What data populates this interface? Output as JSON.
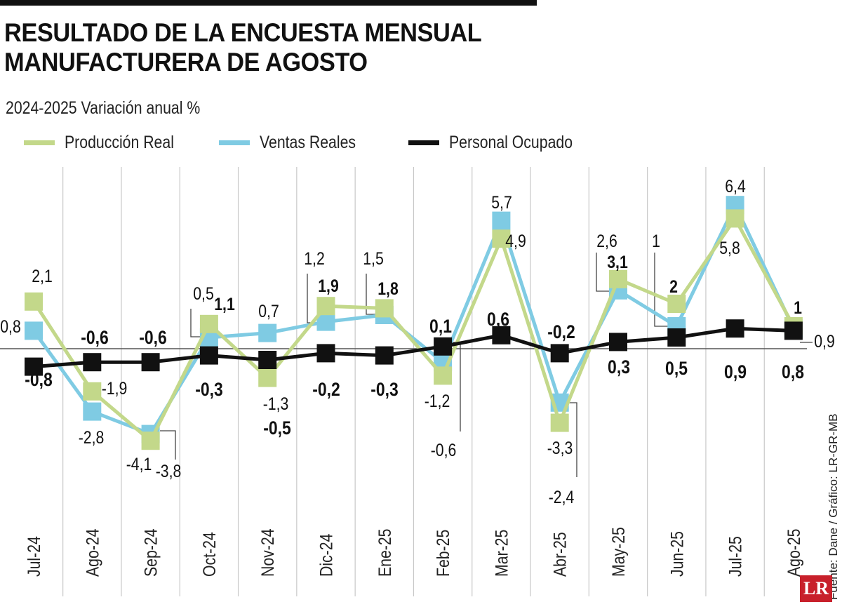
{
  "title_line1": "RESULTADO DE LA ENCUESTA MENSUAL",
  "title_line2": "MANUFACTURERA DE AGOSTO",
  "subtitle": "2024-2025   Variación anual %",
  "source": "Fuente: Dane / Gráfico: LR-GR-MB",
  "logo_text": "LR",
  "colors": {
    "produccion": "#c3d88a",
    "ventas": "#7fcbe3",
    "personal": "#111111",
    "logo": "#c8202b"
  },
  "chart_data": {
    "type": "line",
    "title": "RESULTADO DE LA ENCUESTA MENSUAL MANUFACTURERA DE AGOSTO",
    "subtitle": "2024-2025   Variación anual %",
    "categories": [
      "Jul-24",
      "Ago-24",
      "Sep-24",
      "Oct-24",
      "Nov-24",
      "Dic-24",
      "Ene-25",
      "Feb-25",
      "Mar-25",
      "Abr-25",
      "May-25",
      "Jun-25",
      "Jul-25",
      "Ago-25"
    ],
    "series": [
      {
        "name": "Producción Real",
        "color": "#c3d88a",
        "values": [
          2.1,
          -1.9,
          -4.1,
          1.1,
          -1.3,
          1.9,
          1.8,
          -1.2,
          4.9,
          -3.3,
          3.1,
          2,
          5.8,
          1
        ],
        "labels": [
          "2,1",
          "-1,9",
          "-4,1",
          "1,1",
          "-1,3",
          "1,9",
          "1,8",
          "-1,2",
          "4,9",
          "-3,3",
          "3,1",
          "2",
          "5,8",
          "1"
        ]
      },
      {
        "name": "Ventas Reales",
        "color": "#7fcbe3",
        "values": [
          0.8,
          -2.8,
          -3.8,
          0.5,
          0.7,
          1.2,
          1.5,
          -0.6,
          5.7,
          -2.4,
          2.6,
          1,
          6.4,
          0.9
        ],
        "labels": [
          "0,8",
          "-2,8",
          "-3,8",
          "0,5",
          "0,7",
          "1,2",
          "1,5",
          "-0,6",
          "5,7",
          "-2,4",
          "2,6",
          "1",
          "6,4",
          "0,9"
        ]
      },
      {
        "name": "Personal Ocupado",
        "color": "#111111",
        "values": [
          -0.8,
          -0.6,
          -0.6,
          -0.3,
          -0.5,
          -0.2,
          -0.3,
          0.1,
          0.6,
          -0.2,
          0.3,
          0.5,
          0.9,
          0.8
        ],
        "labels": [
          "-0,8",
          "-0,6",
          "-0,6",
          "-0,3",
          "-0,5",
          "-0,2",
          "-0,3",
          "0,1",
          "0,6",
          "-0,2",
          "0,3",
          "0,5",
          "0,9",
          "0,8"
        ]
      }
    ],
    "grid": true,
    "legend": "top"
  }
}
